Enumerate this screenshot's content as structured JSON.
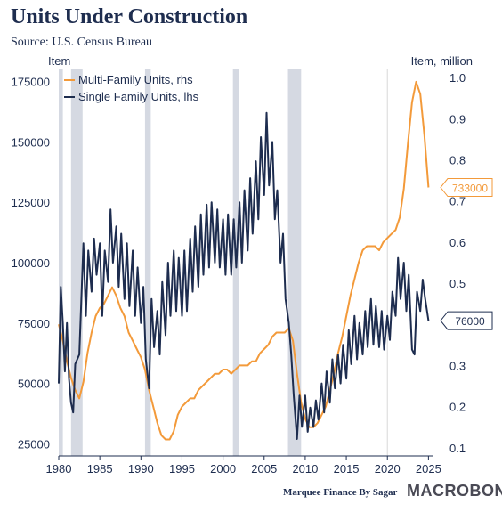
{
  "header": {
    "title": "Units Under Construction",
    "subtitle": "Source: U.S. Census Bureau"
  },
  "footer": {
    "credit": "Marquee Finance By Sagar",
    "brand": "MACROBOND"
  },
  "colors": {
    "multi_family": "#f39a3a",
    "single_family": "#1e2d4f",
    "recession": "#d5d9e2",
    "grid": "#d9d9d9",
    "text": "#1e2d4f"
  },
  "chart_data": {
    "type": "line",
    "ylabel_left": "Item",
    "ylabel_right": "Item, million",
    "xlim": [
      1980,
      2025.5
    ],
    "ylim_left": [
      20000,
      180000
    ],
    "ylim_right": [
      0.08,
      1.02
    ],
    "x_ticks": [
      1980,
      1985,
      1990,
      1995,
      2000,
      2005,
      2010,
      2015,
      2020,
      2025
    ],
    "y_ticks_left": [
      {
        "value": 25000,
        "label": "25000"
      },
      {
        "value": 50000,
        "label": "50000"
      },
      {
        "value": 75000,
        "label": "75000"
      },
      {
        "value": 100000,
        "label": "100000"
      },
      {
        "value": 125000,
        "label": "125000"
      },
      {
        "value": 150000,
        "label": "150000"
      },
      {
        "value": 175000,
        "label": "175000"
      }
    ],
    "y_ticks_right": [
      {
        "value": 0.1,
        "label": "0.1"
      },
      {
        "value": 0.2,
        "label": "0.2"
      },
      {
        "value": 0.3,
        "label": "0.3"
      },
      {
        "value": 0.4,
        "label": "0.4"
      },
      {
        "value": 0.5,
        "label": "0.5"
      },
      {
        "value": 0.6,
        "label": "0.6"
      },
      {
        "value": 0.7,
        "label": "0.7"
      },
      {
        "value": 0.8,
        "label": "0.8"
      },
      {
        "value": 0.9,
        "label": "0.9"
      },
      {
        "value": 1.0,
        "label": "1.0"
      }
    ],
    "legend_position": "top-left",
    "grid": "vertical line at 2020",
    "recessions": [
      [
        1980.0,
        1980.5
      ],
      [
        1981.5,
        1982.9
      ],
      [
        1990.5,
        1991.2
      ],
      [
        2001.2,
        2001.9
      ],
      [
        2007.9,
        2009.5
      ]
    ],
    "series": [
      {
        "name": "Multi-Family Units, rhs",
        "axis": "right",
        "color": "#f39a3a",
        "points": [
          [
            1980.0,
            0.4
          ],
          [
            1980.5,
            0.36
          ],
          [
            1981.0,
            0.31
          ],
          [
            1981.5,
            0.27
          ],
          [
            1982.0,
            0.24
          ],
          [
            1982.5,
            0.22
          ],
          [
            1983.0,
            0.26
          ],
          [
            1983.5,
            0.33
          ],
          [
            1984.0,
            0.38
          ],
          [
            1984.5,
            0.42
          ],
          [
            1985.0,
            0.44
          ],
          [
            1985.5,
            0.45
          ],
          [
            1986.0,
            0.47
          ],
          [
            1986.5,
            0.49
          ],
          [
            1987.0,
            0.47
          ],
          [
            1987.5,
            0.44
          ],
          [
            1988.0,
            0.42
          ],
          [
            1988.5,
            0.38
          ],
          [
            1989.0,
            0.36
          ],
          [
            1989.5,
            0.34
          ],
          [
            1990.0,
            0.32
          ],
          [
            1990.5,
            0.29
          ],
          [
            1991.0,
            0.24
          ],
          [
            1991.5,
            0.2
          ],
          [
            1992.0,
            0.16
          ],
          [
            1992.5,
            0.13
          ],
          [
            1993.0,
            0.12
          ],
          [
            1993.5,
            0.12
          ],
          [
            1994.0,
            0.14
          ],
          [
            1994.5,
            0.18
          ],
          [
            1995.0,
            0.2
          ],
          [
            1995.5,
            0.21
          ],
          [
            1996.0,
            0.22
          ],
          [
            1996.5,
            0.22
          ],
          [
            1997.0,
            0.24
          ],
          [
            1997.5,
            0.25
          ],
          [
            1998.0,
            0.26
          ],
          [
            1998.5,
            0.27
          ],
          [
            1999.0,
            0.28
          ],
          [
            1999.5,
            0.28
          ],
          [
            2000.0,
            0.29
          ],
          [
            2000.5,
            0.29
          ],
          [
            2001.0,
            0.28
          ],
          [
            2001.5,
            0.29
          ],
          [
            2002.0,
            0.3
          ],
          [
            2002.5,
            0.3
          ],
          [
            2003.0,
            0.3
          ],
          [
            2003.5,
            0.31
          ],
          [
            2004.0,
            0.31
          ],
          [
            2004.5,
            0.33
          ],
          [
            2005.0,
            0.34
          ],
          [
            2005.5,
            0.35
          ],
          [
            2006.0,
            0.37
          ],
          [
            2006.5,
            0.38
          ],
          [
            2007.0,
            0.38
          ],
          [
            2007.5,
            0.38
          ],
          [
            2008.0,
            0.39
          ],
          [
            2008.5,
            0.36
          ],
          [
            2009.0,
            0.28
          ],
          [
            2009.5,
            0.21
          ],
          [
            2010.0,
            0.17
          ],
          [
            2010.5,
            0.15
          ],
          [
            2011.0,
            0.15
          ],
          [
            2011.5,
            0.16
          ],
          [
            2012.0,
            0.18
          ],
          [
            2012.5,
            0.2
          ],
          [
            2013.0,
            0.24
          ],
          [
            2013.5,
            0.28
          ],
          [
            2014.0,
            0.33
          ],
          [
            2014.5,
            0.37
          ],
          [
            2015.0,
            0.42
          ],
          [
            2015.5,
            0.47
          ],
          [
            2016.0,
            0.51
          ],
          [
            2016.5,
            0.55
          ],
          [
            2017.0,
            0.58
          ],
          [
            2017.5,
            0.59
          ],
          [
            2018.0,
            0.59
          ],
          [
            2018.5,
            0.59
          ],
          [
            2019.0,
            0.58
          ],
          [
            2019.5,
            0.6
          ],
          [
            2020.0,
            0.61
          ],
          [
            2020.5,
            0.62
          ],
          [
            2021.0,
            0.63
          ],
          [
            2021.5,
            0.66
          ],
          [
            2022.0,
            0.73
          ],
          [
            2022.5,
            0.84
          ],
          [
            2023.0,
            0.94
          ],
          [
            2023.5,
            0.99
          ],
          [
            2024.0,
            0.96
          ],
          [
            2024.5,
            0.86
          ],
          [
            2025.0,
            0.733
          ]
        ]
      },
      {
        "name": "Single Family Units, lhs",
        "axis": "left",
        "color": "#1e2d4f",
        "points": [
          [
            1980.0,
            50000
          ],
          [
            1980.25,
            90000
          ],
          [
            1980.5,
            75000
          ],
          [
            1980.75,
            55000
          ],
          [
            1981.0,
            75000
          ],
          [
            1981.25,
            52000
          ],
          [
            1981.5,
            42000
          ],
          [
            1981.75,
            38000
          ],
          [
            1982.0,
            58000
          ],
          [
            1982.5,
            62000
          ],
          [
            1983.0,
            108000
          ],
          [
            1983.3,
            78000
          ],
          [
            1983.6,
            105000
          ],
          [
            1984.0,
            88000
          ],
          [
            1984.3,
            110000
          ],
          [
            1984.6,
            95000
          ],
          [
            1985.0,
            108000
          ],
          [
            1985.3,
            78000
          ],
          [
            1985.6,
            105000
          ],
          [
            1986.0,
            92000
          ],
          [
            1986.3,
            122000
          ],
          [
            1986.6,
            100000
          ],
          [
            1987.0,
            115000
          ],
          [
            1987.3,
            90000
          ],
          [
            1987.6,
            112000
          ],
          [
            1988.0,
            85000
          ],
          [
            1988.3,
            108000
          ],
          [
            1988.6,
            82000
          ],
          [
            1989.0,
            105000
          ],
          [
            1989.3,
            78000
          ],
          [
            1989.6,
            98000
          ],
          [
            1990.0,
            75000
          ],
          [
            1990.3,
            90000
          ],
          [
            1990.6,
            60000
          ],
          [
            1991.0,
            48000
          ],
          [
            1991.3,
            85000
          ],
          [
            1991.6,
            65000
          ],
          [
            1992.0,
            80000
          ],
          [
            1992.3,
            62000
          ],
          [
            1992.6,
            92000
          ],
          [
            1993.0,
            70000
          ],
          [
            1993.3,
            100000
          ],
          [
            1993.6,
            78000
          ],
          [
            1994.0,
            105000
          ],
          [
            1994.3,
            80000
          ],
          [
            1994.6,
            102000
          ],
          [
            1995.0,
            78000
          ],
          [
            1995.3,
            105000
          ],
          [
            1995.6,
            80000
          ],
          [
            1996.0,
            110000
          ],
          [
            1996.3,
            88000
          ],
          [
            1996.6,
            115000
          ],
          [
            1997.0,
            90000
          ],
          [
            1997.3,
            120000
          ],
          [
            1997.6,
            95000
          ],
          [
            1998.0,
            124000
          ],
          [
            1998.3,
            98000
          ],
          [
            1998.6,
            125000
          ],
          [
            1999.0,
            100000
          ],
          [
            1999.3,
            122000
          ],
          [
            1999.6,
            98000
          ],
          [
            2000.0,
            118000
          ],
          [
            2000.3,
            95000
          ],
          [
            2000.6,
            120000
          ],
          [
            2001.0,
            95000
          ],
          [
            2001.3,
            118000
          ],
          [
            2001.6,
            98000
          ],
          [
            2002.0,
            125000
          ],
          [
            2002.3,
            100000
          ],
          [
            2002.6,
            130000
          ],
          [
            2003.0,
            105000
          ],
          [
            2003.3,
            135000
          ],
          [
            2003.6,
            112000
          ],
          [
            2004.0,
            142000
          ],
          [
            2004.3,
            118000
          ],
          [
            2004.6,
            152000
          ],
          [
            2005.0,
            128000
          ],
          [
            2005.3,
            162000
          ],
          [
            2005.6,
            132000
          ],
          [
            2006.0,
            150000
          ],
          [
            2006.3,
            118000
          ],
          [
            2006.6,
            130000
          ],
          [
            2007.0,
            100000
          ],
          [
            2007.3,
            112000
          ],
          [
            2007.6,
            85000
          ],
          [
            2008.0,
            75000
          ],
          [
            2008.3,
            62000
          ],
          [
            2008.6,
            45000
          ],
          [
            2009.0,
            27000
          ],
          [
            2009.3,
            45000
          ],
          [
            2009.6,
            32000
          ],
          [
            2010.0,
            45000
          ],
          [
            2010.3,
            30000
          ],
          [
            2010.6,
            40000
          ],
          [
            2011.0,
            32000
          ],
          [
            2011.3,
            43000
          ],
          [
            2011.6,
            35000
          ],
          [
            2012.0,
            50000
          ],
          [
            2012.3,
            38000
          ],
          [
            2012.6,
            55000
          ],
          [
            2013.0,
            42000
          ],
          [
            2013.3,
            60000
          ],
          [
            2013.6,
            48000
          ],
          [
            2014.0,
            62000
          ],
          [
            2014.3,
            50000
          ],
          [
            2014.6,
            66000
          ],
          [
            2015.0,
            52000
          ],
          [
            2015.3,
            72000
          ],
          [
            2015.6,
            58000
          ],
          [
            2016.0,
            78000
          ],
          [
            2016.3,
            60000
          ],
          [
            2016.6,
            75000
          ],
          [
            2017.0,
            62000
          ],
          [
            2017.3,
            80000
          ],
          [
            2017.6,
            65000
          ],
          [
            2018.0,
            85000
          ],
          [
            2018.3,
            66000
          ],
          [
            2018.6,
            82000
          ],
          [
            2019.0,
            65000
          ],
          [
            2019.3,
            80000
          ],
          [
            2019.6,
            64000
          ],
          [
            2020.0,
            78000
          ],
          [
            2020.3,
            68000
          ],
          [
            2020.6,
            88000
          ],
          [
            2021.0,
            78000
          ],
          [
            2021.3,
            102000
          ],
          [
            2021.6,
            85000
          ],
          [
            2022.0,
            100000
          ],
          [
            2022.3,
            80000
          ],
          [
            2022.6,
            95000
          ],
          [
            2023.0,
            64000
          ],
          [
            2023.3,
            62000
          ],
          [
            2023.6,
            88000
          ],
          [
            2024.0,
            80000
          ],
          [
            2024.3,
            93000
          ],
          [
            2024.6,
            85000
          ],
          [
            2025.0,
            76000
          ]
        ]
      }
    ],
    "end_labels": [
      {
        "series": "Multi-Family Units, rhs",
        "axis": "right",
        "value": 0.733,
        "label": "733000",
        "color": "#f39a3a"
      },
      {
        "series": "Single Family Units, lhs",
        "axis": "left",
        "value": 76000,
        "label": "76000",
        "color": "#1e2d4f"
      }
    ]
  }
}
